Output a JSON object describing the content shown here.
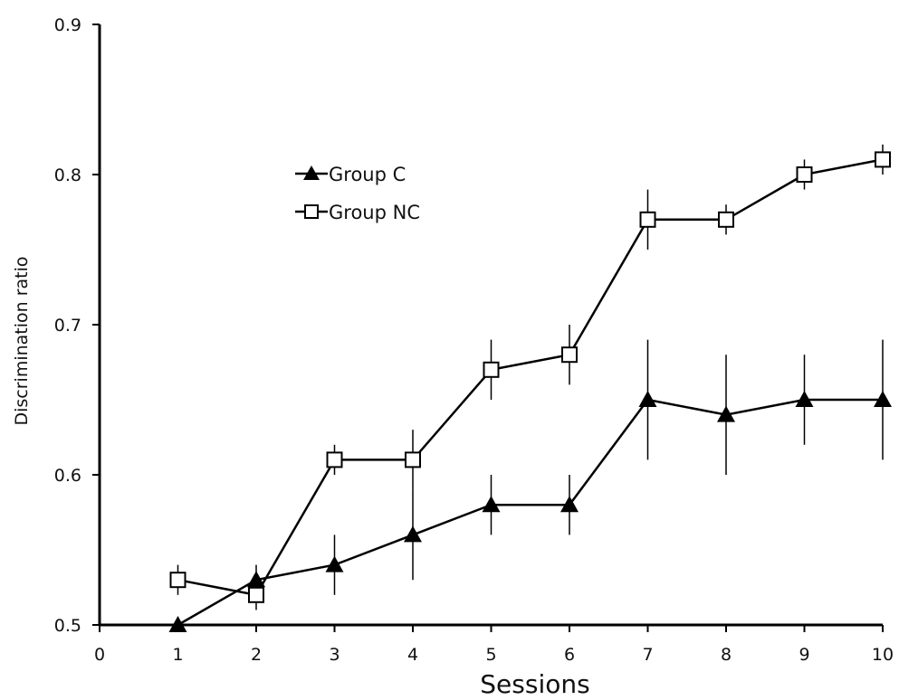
{
  "chart_data": {
    "type": "line",
    "xlabel": "Sessions",
    "ylabel": "Discrimination ratio",
    "xlim": [
      0,
      10
    ],
    "ylim": [
      0.5,
      0.9
    ],
    "x_ticks": [
      "0",
      "1",
      "2",
      "3",
      "4",
      "5",
      "6",
      "7",
      "8",
      "9",
      "10"
    ],
    "y_ticks": [
      "0.5",
      "0.6",
      "0.7",
      "0.8",
      "0.9"
    ],
    "grid": false,
    "legend_position": "upper-left",
    "x": [
      1,
      2,
      3,
      4,
      5,
      6,
      7,
      8,
      9,
      10
    ],
    "series": [
      {
        "name": "Group C",
        "marker": "filled-triangle",
        "color": "#000000",
        "values": [
          0.5,
          0.53,
          0.54,
          0.56,
          0.58,
          0.58,
          0.65,
          0.64,
          0.65,
          0.65
        ],
        "error": [
          0.0,
          0.01,
          0.02,
          0.03,
          0.02,
          0.02,
          0.04,
          0.04,
          0.03,
          0.04
        ]
      },
      {
        "name": "Group NC",
        "marker": "open-square",
        "color": "#000000",
        "values": [
          0.53,
          0.52,
          0.61,
          0.61,
          0.67,
          0.68,
          0.77,
          0.77,
          0.8,
          0.81
        ],
        "error": [
          0.01,
          0.01,
          0.01,
          0.02,
          0.02,
          0.02,
          0.02,
          0.01,
          0.01,
          0.01
        ]
      }
    ]
  }
}
